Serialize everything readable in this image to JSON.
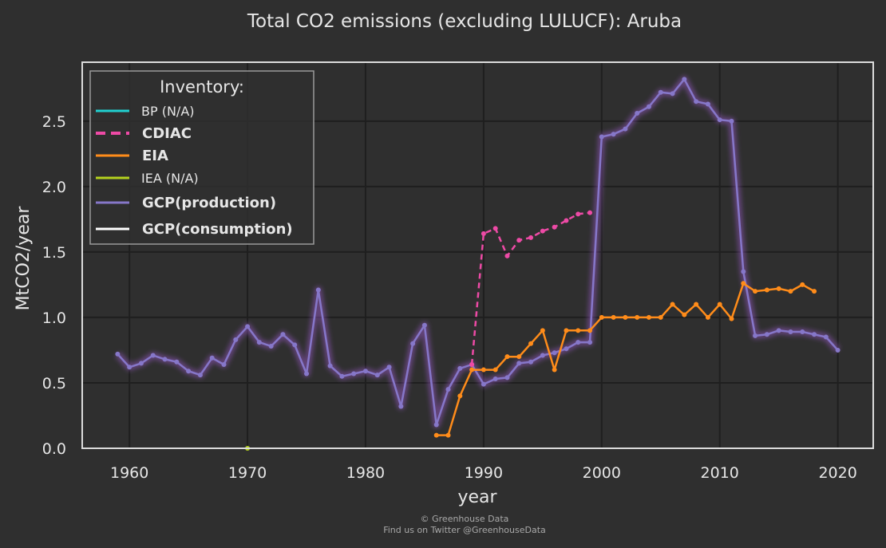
{
  "chart_data": {
    "type": "line",
    "title": "Total CO2 emissions (excluding LULUCF): Aruba",
    "xlabel": "year",
    "ylabel": "MtCO2/year",
    "xlim": [
      1956,
      2023
    ],
    "ylim": [
      0,
      2.95
    ],
    "xticks": [
      1960,
      1970,
      1980,
      1990,
      2000,
      2010,
      2020
    ],
    "yticks": [
      0.0,
      0.5,
      1.0,
      1.5,
      2.0,
      2.5
    ],
    "grid": true,
    "background": "#2f2f2f",
    "grid_color": "#1f1f1f",
    "frame_color": "#dcdcdc",
    "legend": {
      "title": "Inventory:",
      "position": "top-left",
      "entries": [
        {
          "label": "BP (N/A)",
          "color": "#21d0d0",
          "style": "solid",
          "bold": false
        },
        {
          "label": "CDIAC",
          "color": "#ee4aa6",
          "style": "dashed",
          "bold": true
        },
        {
          "label": "EIA",
          "color": "#ff8c1a",
          "style": "solid",
          "bold": true
        },
        {
          "label": "IEA (N/A)",
          "color": "#b5d21e",
          "style": "solid",
          "bold": false
        },
        {
          "label": "GCP(production)",
          "color": "#8677c9",
          "style": "solid",
          "bold": true
        },
        {
          "label": "GCP(consumption)",
          "color": "#ffffff",
          "style": "solid",
          "bold": true
        }
      ]
    },
    "series": [
      {
        "name": "GCP(production)",
        "color": "#8677c9",
        "glow_color": "#a05ad0",
        "x": [
          1959,
          1960,
          1961,
          1962,
          1963,
          1964,
          1965,
          1966,
          1967,
          1968,
          1969,
          1970,
          1971,
          1972,
          1973,
          1974,
          1975,
          1976,
          1977,
          1978,
          1979,
          1980,
          1981,
          1982,
          1983,
          1984,
          1985,
          1986,
          1987,
          1988,
          1989,
          1990,
          1991,
          1992,
          1993,
          1994,
          1995,
          1996,
          1997,
          1998,
          1999,
          2000,
          2001,
          2002,
          2003,
          2004,
          2005,
          2006,
          2007,
          2008,
          2009,
          2010,
          2011,
          2012,
          2013,
          2014,
          2015,
          2016,
          2017,
          2018,
          2019,
          2020
        ],
        "values": [
          0.72,
          0.62,
          0.65,
          0.71,
          0.68,
          0.66,
          0.59,
          0.56,
          0.69,
          0.64,
          0.83,
          0.93,
          0.81,
          0.78,
          0.87,
          0.79,
          0.57,
          1.21,
          0.63,
          0.55,
          0.57,
          0.59,
          0.56,
          0.62,
          0.32,
          0.8,
          0.94,
          0.18,
          0.45,
          0.61,
          0.64,
          0.49,
          0.53,
          0.54,
          0.65,
          0.66,
          0.71,
          0.73,
          0.76,
          0.81,
          0.81,
          2.38,
          2.4,
          2.44,
          2.56,
          2.61,
          2.72,
          2.71,
          2.82,
          2.65,
          2.63,
          2.51,
          2.5,
          1.35,
          0.86,
          0.87,
          0.9,
          0.89,
          0.89,
          0.87,
          0.85,
          0.75
        ]
      },
      {
        "name": "CDIAC",
        "color": "#ee4aa6",
        "dashed": true,
        "x": [
          1989,
          1990,
          1991,
          1992,
          1993,
          1994,
          1995,
          1996,
          1997,
          1998,
          1999
        ],
        "values": [
          0.64,
          1.64,
          1.68,
          1.47,
          1.59,
          1.61,
          1.66,
          1.69,
          1.74,
          1.79,
          1.8
        ]
      },
      {
        "name": "EIA",
        "color": "#ff8c1a",
        "x": [
          1986,
          1987,
          1988,
          1989,
          1990,
          1991,
          1992,
          1993,
          1994,
          1995,
          1996,
          1997,
          1998,
          1999,
          2000,
          2001,
          2002,
          2003,
          2004,
          2005,
          2006,
          2007,
          2008,
          2009,
          2010,
          2011,
          2012,
          2013,
          2014,
          2015,
          2016,
          2017,
          2018
        ],
        "values": [
          0.1,
          0.1,
          0.4,
          0.6,
          0.6,
          0.6,
          0.7,
          0.7,
          0.8,
          0.9,
          0.6,
          0.9,
          0.9,
          0.9,
          1.0,
          1.0,
          1.0,
          1.0,
          1.0,
          1.0,
          1.1,
          1.02,
          1.1,
          1.0,
          1.1,
          0.99,
          1.26,
          1.2,
          1.21,
          1.22,
          1.2,
          1.25,
          1.2
        ]
      },
      {
        "name": "IEA (N/A)",
        "color": "#b5d21e",
        "x": [
          1970
        ],
        "values": [
          0.0
        ]
      }
    ]
  },
  "footer": {
    "line1": "© Greenhouse Data",
    "line2": "Find us on Twitter @GreenhouseData"
  }
}
